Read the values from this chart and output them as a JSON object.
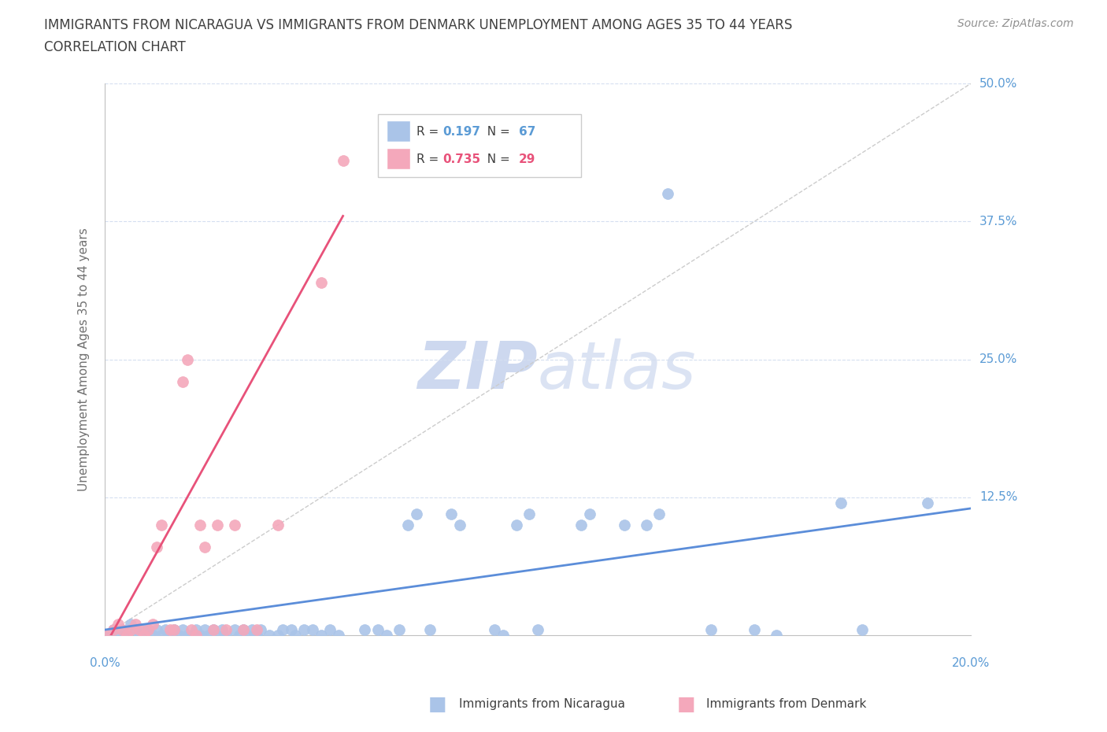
{
  "title_line1": "IMMIGRANTS FROM NICARAGUA VS IMMIGRANTS FROM DENMARK UNEMPLOYMENT AMONG AGES 35 TO 44 YEARS",
  "title_line2": "CORRELATION CHART",
  "source_text": "Source: ZipAtlas.com",
  "ylabel": "Unemployment Among Ages 35 to 44 years",
  "xlim": [
    0.0,
    0.2
  ],
  "ylim": [
    0.0,
    0.5
  ],
  "yticks": [
    0.0,
    0.125,
    0.25,
    0.375,
    0.5
  ],
  "ytick_labels": [
    "",
    "12.5%",
    "25.0%",
    "37.5%",
    "50.0%"
  ],
  "xticks": [
    0.0,
    0.05,
    0.1,
    0.15,
    0.2
  ],
  "nicaragua_color": "#aac4e8",
  "denmark_color": "#f4a8bb",
  "nicaragua_line_color": "#5b8dd9",
  "denmark_line_color": "#e8527a",
  "tick_color": "#5b9bd5",
  "grid_color": "#d5dff0",
  "title_color": "#404040",
  "axis_color": "#c0c0c0",
  "watermark_color": "#cdd8ef",
  "ref_line_color": "#cccccc",
  "nicaragua_line_x": [
    0.0,
    0.2
  ],
  "nicaragua_line_y": [
    0.005,
    0.115
  ],
  "denmark_line_x": [
    0.0,
    0.055
  ],
  "denmark_line_y": [
    -0.01,
    0.38
  ],
  "ref_line_x": [
    0.0,
    0.2
  ],
  "ref_line_y": [
    0.0,
    0.5
  ],
  "nicaragua_scatter": [
    [
      0.0,
      0.0
    ],
    [
      0.002,
      0.005
    ],
    [
      0.003,
      0.0
    ],
    [
      0.004,
      0.005
    ],
    [
      0.005,
      0.0
    ],
    [
      0.006,
      0.01
    ],
    [
      0.007,
      0.005
    ],
    [
      0.008,
      0.0
    ],
    [
      0.009,
      0.005
    ],
    [
      0.01,
      0.005
    ],
    [
      0.011,
      0.0
    ],
    [
      0.012,
      0.005
    ],
    [
      0.013,
      0.0
    ],
    [
      0.014,
      0.005
    ],
    [
      0.015,
      0.0
    ],
    [
      0.016,
      0.005
    ],
    [
      0.017,
      0.0
    ],
    [
      0.018,
      0.005
    ],
    [
      0.019,
      0.0
    ],
    [
      0.02,
      0.0
    ],
    [
      0.021,
      0.005
    ],
    [
      0.022,
      0.0
    ],
    [
      0.023,
      0.005
    ],
    [
      0.024,
      0.0
    ],
    [
      0.025,
      0.005
    ],
    [
      0.026,
      0.0
    ],
    [
      0.027,
      0.005
    ],
    [
      0.028,
      0.0
    ],
    [
      0.03,
      0.005
    ],
    [
      0.031,
      0.0
    ],
    [
      0.032,
      0.005
    ],
    [
      0.033,
      0.0
    ],
    [
      0.034,
      0.005
    ],
    [
      0.035,
      0.0
    ],
    [
      0.036,
      0.005
    ],
    [
      0.038,
      0.0
    ],
    [
      0.04,
      0.0
    ],
    [
      0.041,
      0.005
    ],
    [
      0.043,
      0.005
    ],
    [
      0.044,
      0.0
    ],
    [
      0.046,
      0.005
    ],
    [
      0.048,
      0.005
    ],
    [
      0.05,
      0.0
    ],
    [
      0.052,
      0.005
    ],
    [
      0.054,
      0.0
    ],
    [
      0.06,
      0.005
    ],
    [
      0.063,
      0.005
    ],
    [
      0.065,
      0.0
    ],
    [
      0.068,
      0.005
    ],
    [
      0.07,
      0.1
    ],
    [
      0.072,
      0.11
    ],
    [
      0.075,
      0.005
    ],
    [
      0.08,
      0.11
    ],
    [
      0.082,
      0.1
    ],
    [
      0.09,
      0.005
    ],
    [
      0.092,
      0.0
    ],
    [
      0.095,
      0.1
    ],
    [
      0.098,
      0.11
    ],
    [
      0.1,
      0.005
    ],
    [
      0.11,
      0.1
    ],
    [
      0.112,
      0.11
    ],
    [
      0.12,
      0.1
    ],
    [
      0.125,
      0.1
    ],
    [
      0.128,
      0.11
    ],
    [
      0.13,
      0.4
    ],
    [
      0.14,
      0.005
    ],
    [
      0.15,
      0.005
    ],
    [
      0.155,
      0.0
    ],
    [
      0.17,
      0.12
    ],
    [
      0.175,
      0.005
    ],
    [
      0.19,
      0.12
    ]
  ],
  "denmark_scatter": [
    [
      0.0,
      0.0
    ],
    [
      0.002,
      0.005
    ],
    [
      0.003,
      0.01
    ],
    [
      0.004,
      0.005
    ],
    [
      0.005,
      0.0
    ],
    [
      0.006,
      0.005
    ],
    [
      0.007,
      0.01
    ],
    [
      0.008,
      0.005
    ],
    [
      0.009,
      0.0
    ],
    [
      0.01,
      0.005
    ],
    [
      0.011,
      0.01
    ],
    [
      0.012,
      0.08
    ],
    [
      0.013,
      0.1
    ],
    [
      0.015,
      0.005
    ],
    [
      0.016,
      0.005
    ],
    [
      0.018,
      0.23
    ],
    [
      0.019,
      0.25
    ],
    [
      0.02,
      0.005
    ],
    [
      0.021,
      0.0
    ],
    [
      0.022,
      0.1
    ],
    [
      0.023,
      0.08
    ],
    [
      0.025,
      0.005
    ],
    [
      0.026,
      0.1
    ],
    [
      0.028,
      0.005
    ],
    [
      0.03,
      0.1
    ],
    [
      0.032,
      0.005
    ],
    [
      0.035,
      0.005
    ],
    [
      0.04,
      0.1
    ],
    [
      0.05,
      0.32
    ],
    [
      0.055,
      0.43
    ]
  ]
}
